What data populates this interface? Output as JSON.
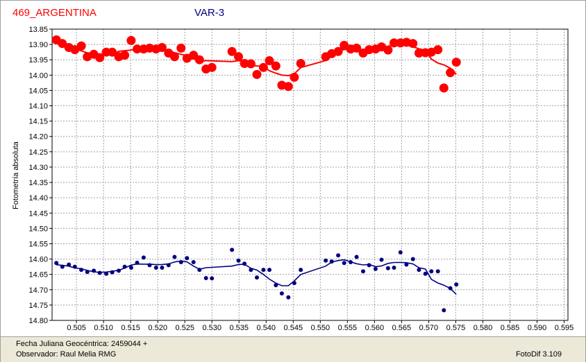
{
  "header": {
    "star_label": "469_ARGENTINA",
    "var_label": "VAR-3"
  },
  "status": {
    "line1": "Fecha Juliana Geocéntrica: 2459044 +",
    "line2": "Observador: Raul Melia RMG",
    "version": "FotoDif 3.109"
  },
  "colors": {
    "red_series": "#ff0000",
    "blue_series": "#000080",
    "grid": "#a0a0a0"
  },
  "chart_data": {
    "type": "scatter",
    "ylabel": "Fotometría absoluta",
    "xlabel": "",
    "xlim": [
      0.5005,
      0.5957
    ],
    "ylim": [
      13.85,
      14.8
    ],
    "y_inverted": true,
    "grid": true,
    "x_ticks": [
      "0.505",
      "0.510",
      "0.515",
      "0.520",
      "0.525",
      "0.530",
      "0.535",
      "0.540",
      "0.545",
      "0.550",
      "0.555",
      "0.560",
      "0.565",
      "0.570",
      "0.575",
      "0.580",
      "0.585",
      "0.590",
      "0.595"
    ],
    "y_ticks": [
      "13.85",
      "13.90",
      "13.95",
      "14.00",
      "14.05",
      "14.10",
      "14.15",
      "14.20",
      "14.25",
      "14.30",
      "14.35",
      "14.40",
      "14.45",
      "14.50",
      "14.55",
      "14.60",
      "14.65",
      "14.70",
      "14.75",
      "14.80"
    ],
    "series": [
      {
        "color": "#ff0000",
        "points": [
          [
            0.5013,
            13.885
          ],
          [
            0.5024,
            13.897
          ],
          [
            0.5036,
            13.91
          ],
          [
            0.5047,
            13.917
          ],
          [
            0.5059,
            13.905
          ],
          [
            0.507,
            13.94
          ],
          [
            0.5082,
            13.932
          ],
          [
            0.5093,
            13.943
          ],
          [
            0.5105,
            13.925
          ],
          [
            0.5116,
            13.925
          ],
          [
            0.5128,
            13.94
          ],
          [
            0.5139,
            13.935
          ],
          [
            0.5151,
            13.887
          ],
          [
            0.5162,
            13.915
          ],
          [
            0.5174,
            13.915
          ],
          [
            0.5185,
            13.912
          ],
          [
            0.5197,
            13.915
          ],
          [
            0.5208,
            13.91
          ],
          [
            0.522,
            13.928
          ],
          [
            0.5231,
            13.94
          ],
          [
            0.5243,
            13.912
          ],
          [
            0.5254,
            13.945
          ],
          [
            0.5266,
            13.935
          ],
          [
            0.5277,
            13.95
          ],
          [
            0.5289,
            13.98
          ],
          [
            0.53,
            13.975
          ],
          [
            0.5337,
            13.923
          ],
          [
            0.5349,
            13.94
          ],
          [
            0.536,
            13.962
          ],
          [
            0.5372,
            13.963
          ],
          [
            0.5383,
            13.998
          ],
          [
            0.5395,
            13.975
          ],
          [
            0.5406,
            13.953
          ],
          [
            0.5418,
            13.97
          ],
          [
            0.5429,
            14.033
          ],
          [
            0.5441,
            14.037
          ],
          [
            0.5452,
            14.007
          ],
          [
            0.5464,
            13.962
          ],
          [
            0.551,
            13.94
          ],
          [
            0.5521,
            13.93
          ],
          [
            0.5533,
            13.923
          ],
          [
            0.5544,
            13.903
          ],
          [
            0.5556,
            13.915
          ],
          [
            0.5567,
            13.912
          ],
          [
            0.5579,
            13.928
          ],
          [
            0.559,
            13.917
          ],
          [
            0.5602,
            13.915
          ],
          [
            0.5613,
            13.908
          ],
          [
            0.5625,
            13.918
          ],
          [
            0.5636,
            13.895
          ],
          [
            0.5648,
            13.895
          ],
          [
            0.5659,
            13.893
          ],
          [
            0.5671,
            13.897
          ],
          [
            0.5682,
            13.928
          ],
          [
            0.5694,
            13.927
          ],
          [
            0.5705,
            13.925
          ],
          [
            0.5717,
            13.917
          ],
          [
            0.5728,
            14.042
          ],
          [
            0.574,
            13.992
          ],
          [
            0.5751,
            13.958
          ]
        ]
      },
      {
        "color": "#000080",
        "points": [
          [
            0.5013,
            14.613
          ],
          [
            0.5024,
            14.625
          ],
          [
            0.5036,
            14.618
          ],
          [
            0.5047,
            14.625
          ],
          [
            0.5059,
            14.635
          ],
          [
            0.507,
            14.642
          ],
          [
            0.5082,
            14.638
          ],
          [
            0.5093,
            14.645
          ],
          [
            0.5105,
            14.648
          ],
          [
            0.5116,
            14.643
          ],
          [
            0.5128,
            14.638
          ],
          [
            0.5139,
            14.625
          ],
          [
            0.5151,
            14.628
          ],
          [
            0.5162,
            14.612
          ],
          [
            0.5174,
            14.595
          ],
          [
            0.5185,
            14.62
          ],
          [
            0.5197,
            14.628
          ],
          [
            0.5208,
            14.628
          ],
          [
            0.522,
            14.62
          ],
          [
            0.5231,
            14.593
          ],
          [
            0.5243,
            14.61
          ],
          [
            0.5254,
            14.597
          ],
          [
            0.5266,
            14.61
          ],
          [
            0.5277,
            14.635
          ],
          [
            0.5289,
            14.662
          ],
          [
            0.53,
            14.663
          ],
          [
            0.5337,
            14.57
          ],
          [
            0.5349,
            14.605
          ],
          [
            0.536,
            14.615
          ],
          [
            0.5372,
            14.635
          ],
          [
            0.5383,
            14.66
          ],
          [
            0.5395,
            14.635
          ],
          [
            0.5406,
            14.635
          ],
          [
            0.5418,
            14.685
          ],
          [
            0.5429,
            14.712
          ],
          [
            0.5441,
            14.725
          ],
          [
            0.5452,
            14.678
          ],
          [
            0.5464,
            14.635
          ],
          [
            0.551,
            14.605
          ],
          [
            0.5521,
            14.608
          ],
          [
            0.5533,
            14.588
          ],
          [
            0.5544,
            14.613
          ],
          [
            0.5556,
            14.61
          ],
          [
            0.5567,
            14.593
          ],
          [
            0.5579,
            14.64
          ],
          [
            0.559,
            14.62
          ],
          [
            0.5602,
            14.632
          ],
          [
            0.5613,
            14.602
          ],
          [
            0.5625,
            14.63
          ],
          [
            0.5636,
            14.628
          ],
          [
            0.5648,
            14.578
          ],
          [
            0.5659,
            14.618
          ],
          [
            0.5671,
            14.6
          ],
          [
            0.5682,
            14.635
          ],
          [
            0.5694,
            14.648
          ],
          [
            0.5705,
            14.64
          ],
          [
            0.5717,
            14.64
          ],
          [
            0.5728,
            14.767
          ],
          [
            0.574,
            14.695
          ],
          [
            0.5751,
            14.683
          ]
        ]
      }
    ]
  }
}
